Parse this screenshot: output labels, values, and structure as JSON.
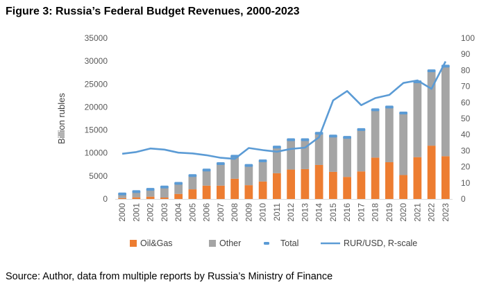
{
  "title": "Figure 3: Russia’s Federal Budget Revenues, 2000-2023",
  "source": "Source: Author, data from multiple reports by Russia’s Ministry of Finance",
  "chart_data": {
    "type": "bar",
    "stacked": true,
    "categories": [
      "2000",
      "2001",
      "2002",
      "2003",
      "2004",
      "2005",
      "2006",
      "2007",
      "2008",
      "2009",
      "2010",
      "2011",
      "2012",
      "2013",
      "2014",
      "2015",
      "2016",
      "2017",
      "2018",
      "2019",
      "2020",
      "2021",
      "2022",
      "2023"
    ],
    "series": [
      {
        "name": "Oil&Gas",
        "kind": "bar",
        "axis": "left",
        "color": "#ED7D31",
        "values": [
          200,
          350,
          500,
          300,
          1100,
          2100,
          2900,
          2900,
          4400,
          3000,
          3800,
          5600,
          6400,
          6500,
          7400,
          5900,
          4800,
          6000,
          9000,
          8000,
          5200,
          9100,
          11600,
          9300
        ]
      },
      {
        "name": "Other",
        "kind": "bar",
        "axis": "left",
        "color": "#A5A5A5",
        "values": [
          900,
          1250,
          1600,
          2300,
          2300,
          3000,
          3400,
          4800,
          4900,
          4300,
          4500,
          5700,
          6500,
          6400,
          6900,
          7800,
          8600,
          9100,
          10400,
          12000,
          13500,
          16400,
          16300,
          19600
        ]
      },
      {
        "name": "Total",
        "kind": "marker",
        "axis": "left",
        "color": "#5B9BD5",
        "values": [
          1100,
          1600,
          2100,
          2600,
          3400,
          5100,
          6300,
          7700,
          9300,
          7300,
          8300,
          11300,
          12900,
          12900,
          14300,
          13700,
          13400,
          15100,
          19400,
          20000,
          18700,
          25500,
          27900,
          28900
        ]
      },
      {
        "name": "RUR/USD, R-scale",
        "kind": "line",
        "axis": "right",
        "color": "#5B9BD5",
        "values": [
          28.1,
          29.2,
          31.4,
          30.7,
          28.8,
          28.3,
          27.2,
          25.6,
          24.9,
          31.7,
          30.4,
          29.4,
          31.1,
          31.9,
          38.4,
          61.3,
          67.1,
          58.3,
          62.7,
          64.7,
          72.1,
          73.7,
          68.5,
          85.5
        ]
      }
    ],
    "y_left": {
      "label": "Billion rubles",
      "min": 0,
      "max": 35000,
      "ticks": [
        0,
        5000,
        10000,
        15000,
        20000,
        25000,
        30000,
        35000
      ]
    },
    "y_right": {
      "min": 0,
      "max": 100,
      "ticks": [
        0,
        10,
        20,
        30,
        40,
        50,
        60,
        70,
        80,
        90,
        100
      ]
    },
    "grid": false,
    "legend_position": "bottom",
    "legend": [
      "Oil&Gas",
      "Other",
      "Total",
      "RUR/USD, R-scale"
    ]
  }
}
